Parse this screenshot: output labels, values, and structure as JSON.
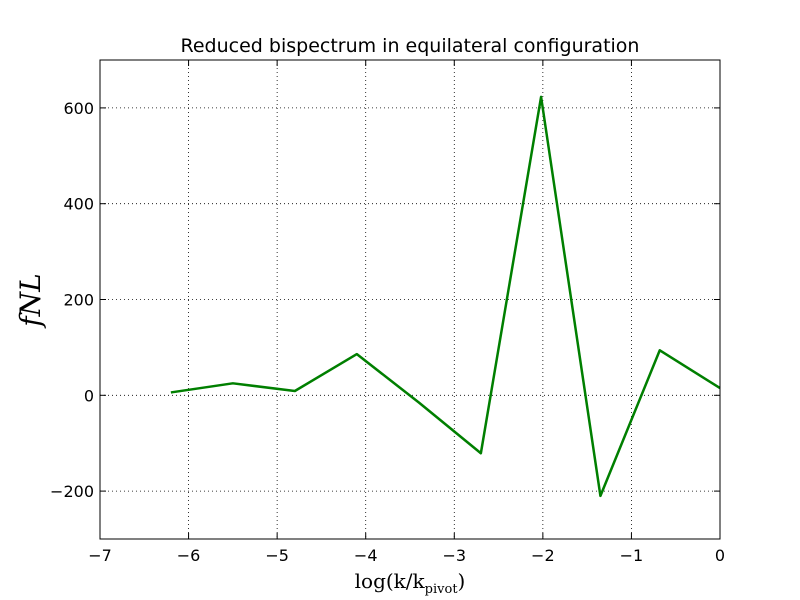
{
  "chart_data": {
    "type": "line",
    "title": "Reduced bispectrum in equilateral configuration",
    "xlabel": {
      "main": "log(k/k",
      "sub": "pivot",
      "close": ")"
    },
    "ylabel": "fNL",
    "xlim": [
      -7,
      0
    ],
    "ylim": [
      -300,
      700
    ],
    "xticks": [
      -7,
      -6,
      -5,
      -4,
      -3,
      -2,
      -1,
      0
    ],
    "xtick_labels": [
      "−7",
      "−6",
      "−5",
      "−4",
      "−3",
      "−2",
      "−1",
      "0"
    ],
    "yticks": [
      -200,
      0,
      200,
      400,
      600
    ],
    "ytick_labels": [
      "−200",
      "0",
      "200",
      "400",
      "600"
    ],
    "grid": true,
    "series": [
      {
        "color": "#007f00",
        "x": [
          -6.2,
          -5.5,
          -4.8,
          -4.1,
          -3.4,
          -2.7,
          -2.02,
          -1.35,
          -0.68,
          0.0
        ],
        "y": [
          6,
          25,
          9,
          86,
          -15,
          -121,
          623,
          -210,
          94,
          15
        ]
      }
    ]
  }
}
